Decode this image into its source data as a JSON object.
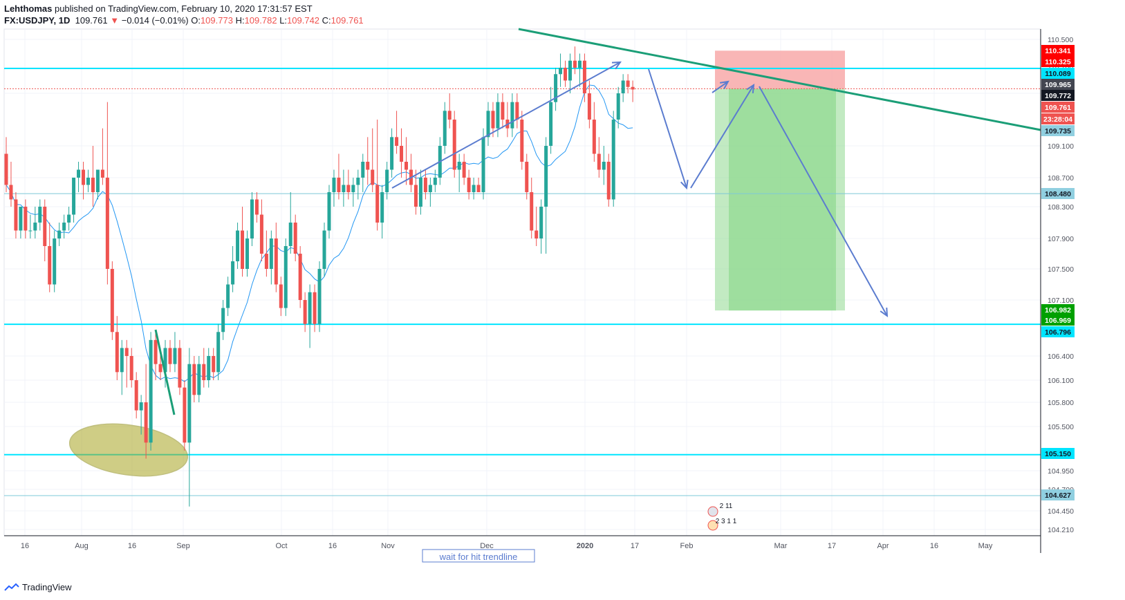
{
  "header": {
    "publisher": "Lehthomas",
    "published_text": "published on TradingView.com, February 10, 2020 17:31:57 EST",
    "symbol": "FX:USDJPY, 1D",
    "last": "109.761",
    "change_arrow": "▼",
    "change": "−0.014 (−0.01%)",
    "o_label": "O:",
    "o": "109.773",
    "h_label": "H:",
    "h": "109.782",
    "l_label": "L:",
    "l": "109.742",
    "c_label": "C:",
    "c": "109.761"
  },
  "footer": {
    "brand": "TradingView",
    "logo_icon": "tradingview-logo-icon"
  },
  "annotation_text": "wait for hit trendline",
  "event_markers": {
    "top": "2 11",
    "bottom": "2 3 1 1"
  },
  "colors": {
    "up": "#26a69a",
    "down": "#ef5350",
    "ma": "#2196f3",
    "hline": "#00e5ff",
    "trendline": "#1b9e77",
    "arrows": "#5b7ccf",
    "stop_zone": "#f7a4a4",
    "target_zone": "#8fd88f",
    "ellipse": "#a8a623"
  },
  "chart_data": {
    "type": "candlestick",
    "title": "USDJPY, 1D",
    "ylim": [
      104.13,
      110.6
    ],
    "y_ticks": [
      "110.500",
      "110.100",
      "109.700",
      "109.100",
      "108.700",
      "108.300",
      "107.900",
      "107.500",
      "107.100",
      "106.400",
      "106.100",
      "105.800",
      "105.500",
      "104.950",
      "104.700",
      "104.450",
      "104.210"
    ],
    "x_ticks": [
      "16",
      "Aug",
      "16",
      "Sep",
      "Oct",
      "16",
      "Nov",
      "Dec",
      "2020",
      "17",
      "Feb",
      "Mar",
      "17",
      "Apr",
      "16",
      "May"
    ],
    "horizontal_levels": [
      "110.089",
      "108.480",
      "106.796",
      "105.150",
      "104.627"
    ],
    "price_labels": [
      {
        "text": "110.341",
        "bg": "#ff0000",
        "fg": "#ffffff"
      },
      {
        "text": "110.325",
        "bg": "#ff0000",
        "fg": "#ffffff"
      },
      {
        "text": "110.089",
        "bg": "#00e5ff",
        "fg": "#131722"
      },
      {
        "text": "109.965",
        "bg": "#434651",
        "fg": "#ffffff"
      },
      {
        "text": "109.772",
        "bg": "#131722",
        "fg": "#ffffff"
      },
      {
        "text": "109.761",
        "bg": "#ef5350",
        "fg": "#ffffff"
      },
      {
        "text": "23:28:04",
        "bg": "#ef5350",
        "fg": "#ffffff"
      },
      {
        "text": "109.735",
        "bg": "#90cfe0",
        "fg": "#131722"
      },
      {
        "text": "108.480",
        "bg": "#90cfe0",
        "fg": "#131722"
      },
      {
        "text": "106.982",
        "bg": "#00a000",
        "fg": "#ffffff"
      },
      {
        "text": "106.969",
        "bg": "#00a000",
        "fg": "#ffffff"
      },
      {
        "text": "106.796",
        "bg": "#00e5ff",
        "fg": "#131722"
      },
      {
        "text": "105.150",
        "bg": "#00e5ff",
        "fg": "#131722"
      },
      {
        "text": "104.627",
        "bg": "#90cfe0",
        "fg": "#131722"
      }
    ],
    "position": {
      "entry": "109.772",
      "stop": "110.341",
      "target": "106.969"
    },
    "candles_ohlc": [
      [
        109.0,
        109.2,
        108.5,
        108.6
      ],
      [
        108.6,
        108.9,
        108.3,
        108.4
      ],
      [
        108.4,
        108.5,
        107.9,
        108.0
      ],
      [
        108.0,
        108.3,
        107.9,
        108.3
      ],
      [
        108.3,
        108.4,
        107.9,
        108.0
      ],
      [
        108.0,
        108.2,
        107.9,
        108.0
      ],
      [
        108.0,
        108.3,
        107.9,
        108.1
      ],
      [
        108.1,
        108.4,
        108.0,
        108.3
      ],
      [
        108.3,
        108.4,
        107.6,
        107.8
      ],
      [
        107.8,
        108.1,
        107.2,
        107.3
      ],
      [
        107.3,
        108.0,
        107.2,
        107.9
      ],
      [
        107.9,
        108.1,
        107.8,
        108.0
      ],
      [
        108.0,
        108.2,
        107.9,
        108.1
      ],
      [
        108.1,
        108.3,
        108.0,
        108.2
      ],
      [
        108.2,
        108.7,
        108.1,
        108.7
      ],
      [
        108.7,
        108.9,
        108.5,
        108.8
      ],
      [
        108.8,
        108.9,
        108.4,
        108.6
      ],
      [
        108.6,
        108.8,
        108.5,
        108.7
      ],
      [
        108.7,
        109.1,
        108.3,
        108.5
      ],
      [
        108.5,
        108.8,
        108.4,
        108.8
      ],
      [
        108.8,
        109.3,
        108.6,
        108.7
      ],
      [
        108.7,
        109.6,
        107.3,
        107.5
      ],
      [
        107.5,
        107.6,
        106.6,
        106.7
      ],
      [
        106.7,
        106.9,
        106.1,
        106.2
      ],
      [
        106.2,
        106.6,
        105.9,
        106.5
      ],
      [
        106.5,
        106.6,
        106.0,
        106.4
      ],
      [
        106.4,
        106.5,
        106.0,
        106.1
      ],
      [
        106.1,
        106.2,
        105.6,
        105.7
      ],
      [
        105.7,
        105.9,
        105.4,
        105.8
      ],
      [
        105.8,
        106.3,
        105.1,
        105.3
      ],
      [
        105.3,
        106.7,
        105.2,
        106.6
      ],
      [
        106.6,
        106.7,
        106.1,
        106.3
      ],
      [
        106.3,
        106.5,
        106.1,
        106.2
      ],
      [
        106.2,
        106.6,
        106.0,
        106.5
      ],
      [
        106.5,
        106.6,
        106.2,
        106.3
      ],
      [
        106.3,
        106.7,
        106.2,
        106.5
      ],
      [
        106.5,
        106.6,
        105.9,
        106.0
      ],
      [
        106.0,
        106.1,
        105.2,
        105.3
      ],
      [
        105.3,
        106.5,
        104.5,
        106.3
      ],
      [
        106.3,
        106.4,
        105.8,
        105.9
      ],
      [
        105.9,
        106.4,
        105.8,
        106.3
      ],
      [
        106.3,
        106.5,
        106.0,
        106.1
      ],
      [
        106.1,
        106.5,
        106.0,
        106.4
      ],
      [
        106.4,
        106.5,
        106.1,
        106.2
      ],
      [
        106.2,
        106.8,
        106.1,
        106.7
      ],
      [
        106.7,
        107.1,
        106.6,
        107.0
      ],
      [
        107.0,
        107.4,
        106.9,
        107.3
      ],
      [
        107.3,
        107.8,
        107.2,
        107.6
      ],
      [
        107.6,
        108.1,
        107.5,
        108.0
      ],
      [
        108.0,
        108.3,
        107.4,
        107.5
      ],
      [
        107.5,
        108.0,
        107.4,
        107.9
      ],
      [
        107.9,
        108.5,
        107.8,
        108.4
      ],
      [
        108.4,
        108.5,
        108.1,
        108.2
      ],
      [
        108.2,
        108.4,
        107.6,
        107.7
      ],
      [
        107.7,
        108.0,
        107.4,
        107.5
      ],
      [
        107.5,
        108.0,
        107.3,
        107.9
      ],
      [
        107.9,
        108.1,
        107.2,
        107.3
      ],
      [
        107.3,
        107.4,
        106.9,
        107.0
      ],
      [
        107.0,
        107.9,
        106.9,
        107.8
      ],
      [
        107.8,
        108.5,
        107.7,
        108.1
      ],
      [
        108.1,
        108.2,
        107.6,
        107.7
      ],
      [
        107.7,
        107.8,
        107.0,
        107.1
      ],
      [
        107.1,
        107.2,
        106.7,
        106.8
      ],
      [
        106.8,
        107.3,
        106.5,
        107.2
      ],
      [
        107.2,
        107.3,
        106.7,
        106.8
      ],
      [
        106.8,
        107.6,
        106.7,
        107.5
      ],
      [
        107.5,
        108.1,
        107.4,
        108.0
      ],
      [
        108.0,
        108.6,
        107.9,
        108.5
      ],
      [
        108.5,
        108.8,
        108.3,
        108.7
      ],
      [
        108.7,
        109.0,
        108.4,
        108.5
      ],
      [
        108.5,
        108.8,
        108.3,
        108.6
      ],
      [
        108.6,
        108.8,
        108.4,
        108.5
      ],
      [
        108.5,
        108.7,
        108.3,
        108.6
      ],
      [
        108.6,
        108.8,
        108.4,
        108.7
      ],
      [
        108.7,
        109.0,
        108.5,
        108.9
      ],
      [
        108.9,
        109.2,
        108.6,
        108.8
      ],
      [
        108.8,
        109.3,
        108.5,
        108.6
      ],
      [
        108.6,
        109.4,
        108.0,
        108.1
      ],
      [
        108.1,
        108.6,
        107.9,
        108.5
      ],
      [
        108.5,
        108.9,
        108.4,
        108.8
      ],
      [
        108.8,
        109.3,
        108.7,
        109.2
      ],
      [
        109.2,
        109.5,
        109.0,
        109.1
      ],
      [
        109.1,
        109.3,
        108.7,
        108.9
      ],
      [
        108.9,
        109.2,
        108.6,
        108.8
      ],
      [
        108.8,
        109.0,
        108.5,
        108.6
      ],
      [
        108.6,
        108.8,
        108.2,
        108.3
      ],
      [
        108.3,
        108.8,
        108.2,
        108.7
      ],
      [
        108.7,
        108.8,
        108.4,
        108.5
      ],
      [
        108.5,
        108.7,
        108.3,
        108.6
      ],
      [
        108.6,
        108.8,
        108.5,
        108.7
      ],
      [
        108.7,
        109.2,
        108.6,
        109.1
      ],
      [
        109.1,
        109.6,
        109.0,
        109.5
      ],
      [
        109.5,
        109.7,
        109.3,
        109.4
      ],
      [
        109.4,
        109.5,
        108.7,
        108.8
      ],
      [
        108.8,
        109.0,
        108.5,
        108.9
      ],
      [
        108.9,
        109.0,
        108.6,
        108.7
      ],
      [
        108.7,
        108.8,
        108.4,
        108.5
      ],
      [
        108.5,
        108.7,
        108.4,
        108.6
      ],
      [
        108.6,
        108.7,
        108.5,
        108.5
      ],
      [
        108.5,
        109.3,
        108.4,
        109.2
      ],
      [
        109.2,
        109.6,
        109.1,
        109.5
      ],
      [
        109.5,
        109.6,
        109.2,
        109.3
      ],
      [
        109.3,
        109.7,
        109.2,
        109.6
      ],
      [
        109.6,
        109.7,
        109.3,
        109.4
      ],
      [
        109.4,
        109.6,
        109.2,
        109.3
      ],
      [
        109.3,
        109.7,
        109.2,
        109.6
      ],
      [
        109.6,
        109.7,
        109.3,
        109.4
      ],
      [
        109.4,
        109.5,
        108.8,
        108.9
      ],
      [
        108.9,
        109.0,
        108.4,
        108.5
      ],
      [
        108.5,
        108.7,
        107.9,
        108.0
      ],
      [
        108.0,
        108.3,
        107.8,
        107.9
      ],
      [
        107.9,
        108.4,
        107.7,
        108.3
      ],
      [
        108.3,
        109.2,
        107.7,
        109.1
      ],
      [
        109.1,
        109.8,
        109.0,
        109.6
      ],
      [
        109.6,
        110.1,
        109.5,
        110.0
      ],
      [
        110.0,
        110.3,
        109.8,
        110.1
      ],
      [
        110.1,
        110.2,
        109.8,
        109.9
      ],
      [
        109.9,
        110.3,
        109.7,
        110.2
      ],
      [
        110.2,
        110.4,
        110.0,
        110.1
      ],
      [
        110.1,
        110.3,
        109.8,
        110.2
      ],
      [
        110.2,
        110.3,
        109.6,
        109.7
      ],
      [
        109.7,
        109.9,
        109.3,
        109.4
      ],
      [
        109.4,
        109.6,
        108.9,
        109.0
      ],
      [
        109.0,
        109.2,
        108.7,
        108.8
      ],
      [
        108.8,
        109.1,
        108.6,
        108.9
      ],
      [
        108.9,
        109.0,
        108.3,
        108.4
      ],
      [
        108.4,
        109.5,
        108.3,
        109.4
      ],
      [
        109.4,
        109.8,
        109.3,
        109.7
      ],
      [
        109.7,
        110.0,
        109.6,
        109.9
      ],
      [
        109.9,
        110.0,
        109.7,
        109.8
      ],
      [
        109.8,
        109.9,
        109.6,
        109.76
      ]
    ]
  }
}
